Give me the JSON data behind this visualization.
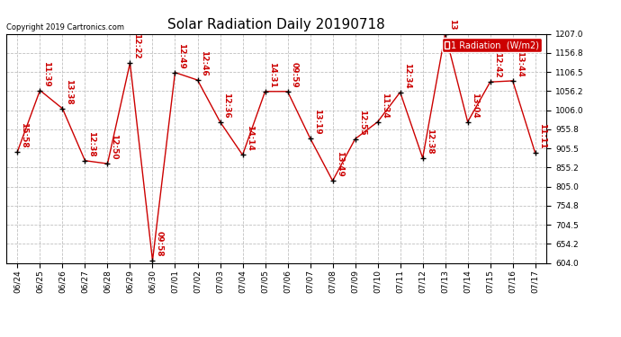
{
  "title": "Solar Radiation Daily 20190718",
  "copyright_text": "Copyright 2019 Cartronics.com",
  "legend_label": "1 Radiation  (W/m2)",
  "ylim": [
    604.0,
    1207.0
  ],
  "yticks": [
    604.0,
    654.2,
    704.5,
    754.8,
    805.0,
    855.2,
    905.5,
    955.8,
    1006.0,
    1056.2,
    1106.5,
    1156.8,
    1207.0
  ],
  "dates": [
    "06/24",
    "06/25",
    "06/26",
    "06/27",
    "06/28",
    "06/29",
    "06/30",
    "07/01",
    "07/02",
    "07/03",
    "07/04",
    "07/05",
    "07/06",
    "07/07",
    "07/08",
    "07/09",
    "07/10",
    "07/11",
    "07/12",
    "07/13",
    "07/14",
    "07/15",
    "07/16",
    "07/17"
  ],
  "values": [
    897.0,
    1058.0,
    1010.0,
    873.0,
    865.0,
    1130.0,
    610.0,
    1105.0,
    1085.0,
    975.0,
    888.0,
    1055.0,
    1055.0,
    932.0,
    820.0,
    930.0,
    975.0,
    1053.0,
    880.0,
    1207.0,
    975.0,
    1080.0,
    1083.0,
    893.0
  ],
  "time_labels": [
    "15:58",
    "11:39",
    "13:38",
    "12:38",
    "12:50",
    "12:22",
    "09:58",
    "12:49",
    "12:46",
    "12:36",
    "14:14",
    "14:31",
    "09:59",
    "13:19",
    "13:49",
    "12:55",
    "11:34",
    "12:34",
    "12:38",
    "13",
    "13:04",
    "12:42",
    "13:44",
    "11:11"
  ],
  "line_color": "#cc0000",
  "marker_color": "#000000",
  "bg_color": "#ffffff",
  "grid_color": "#c0c0c0",
  "title_fontsize": 11,
  "label_fontsize": 6.5,
  "annotation_fontsize": 6.5,
  "copyright_fontsize": 6.0
}
